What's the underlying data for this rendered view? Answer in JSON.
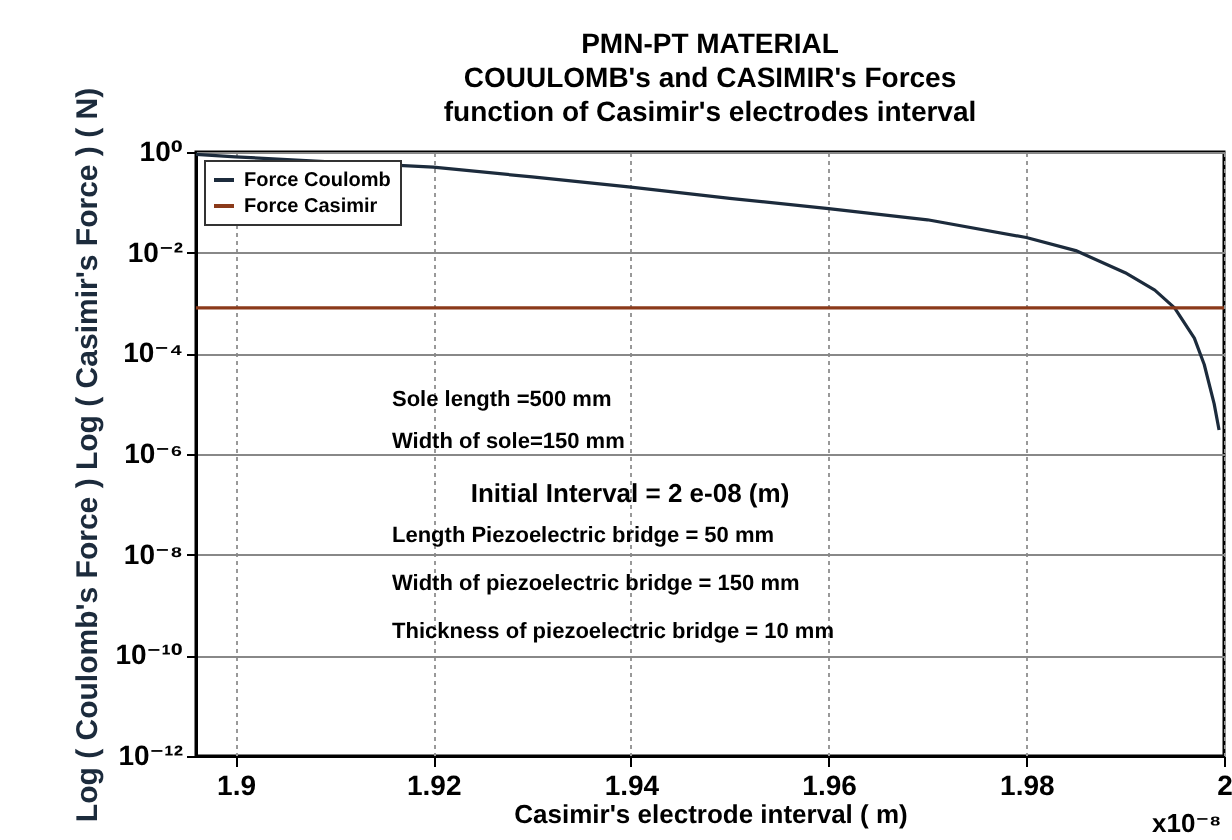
{
  "chart_data": {
    "type": "line",
    "title": [
      "PMN-PT MATERIAL",
      "COUULOMB's and CASIMIR's  Forces",
      "function of Casimir's electrodes interval"
    ],
    "xlabel": "Casimir's electrode interval ( m)",
    "ylabel": "Log ( Coulomb's  Force ) Log ( Casimir's Force ) ( N)",
    "series": [
      {
        "name": "Force Coulomb",
        "color": "#1c2b3c",
        "x": [
          1.896,
          1.9,
          1.91,
          1.92,
          1.93,
          1.94,
          1.95,
          1.96,
          1.97,
          1.98,
          1.985,
          1.99,
          1.993,
          1.995,
          1.997,
          1.998,
          1.999,
          1.9995
        ],
        "values": [
          0.9,
          0.8,
          0.63,
          0.5,
          0.32,
          0.2,
          0.12,
          0.075,
          0.045,
          0.02,
          0.011,
          0.004,
          0.0018,
          0.0008,
          0.0002,
          6e-05,
          1e-05,
          3e-06
        ]
      },
      {
        "name": "Force Casimir",
        "color": "#8b3a1a",
        "x": [
          1.896,
          2.0
        ],
        "values": [
          0.0008,
          0.0008
        ]
      }
    ],
    "xlim": [
      1.896,
      2.0
    ],
    "xticks": [
      1.9,
      1.92,
      1.94,
      1.96,
      1.98,
      2
    ],
    "ylim": [
      1e-12,
      1
    ],
    "log": true,
    "yticks": [
      {
        "value": 1,
        "label": "10⁰"
      },
      {
        "value": 0.01,
        "label": "10⁻²"
      },
      {
        "value": 0.0001,
        "label": "10⁻⁴"
      },
      {
        "value": 1e-06,
        "label": "10⁻⁶"
      },
      {
        "value": 1e-08,
        "label": "10⁻⁸"
      },
      {
        "value": 1e-10,
        "label": "10⁻¹⁰"
      },
      {
        "value": 1e-12,
        "label": "10⁻¹²"
      }
    ],
    "grid": true,
    "legend": "top left",
    "annotations": [
      "Sole length =500 mm",
      "Width of sole=150 mm",
      "Initial Interval = 2 e-08 (m)",
      "Length Piezoelectric bridge = 50 mm",
      "Width of piezoelectric bridge = 150 mm",
      "Thickness of piezoelectric bridge = 10 mm",
      "x10⁻⁸"
    ]
  }
}
